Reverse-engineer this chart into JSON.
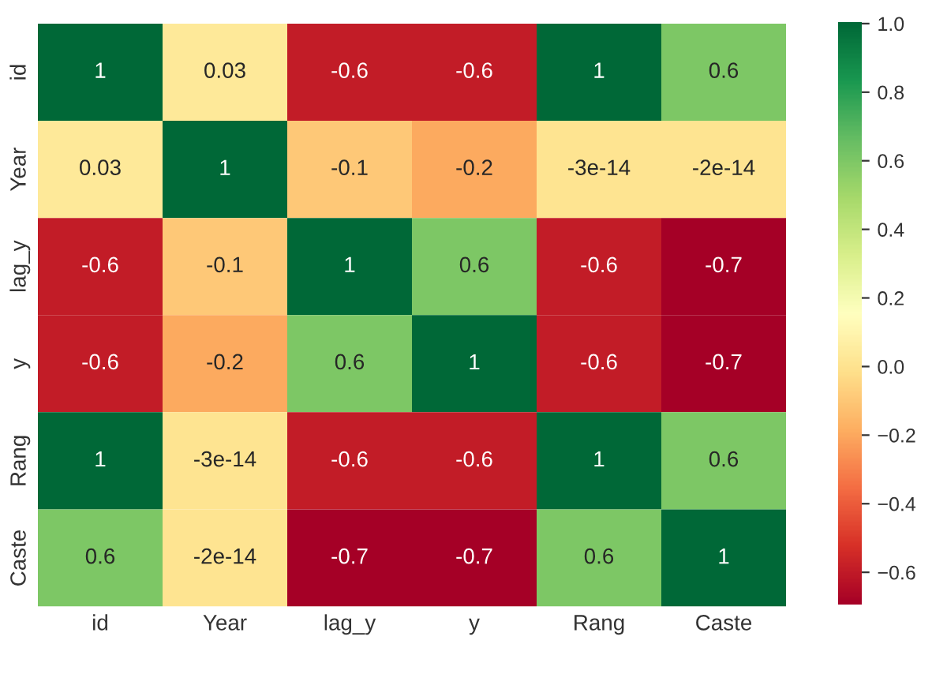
{
  "chart_data": {
    "type": "heatmap",
    "categories": [
      "id",
      "Year",
      "lag_y",
      "y",
      "Rang",
      "Caste"
    ],
    "y_categories": [
      "id",
      "Year",
      "lag_y",
      "y",
      "Rang",
      "Caste"
    ],
    "cells": [
      [
        1,
        0.03,
        -0.6,
        -0.6,
        1,
        0.6
      ],
      [
        0.03,
        1,
        -0.1,
        -0.2,
        -3e-14,
        -2e-14
      ],
      [
        -0.6,
        -0.1,
        1,
        0.6,
        -0.6,
        -0.7
      ],
      [
        -0.6,
        -0.2,
        0.6,
        1,
        -0.6,
        -0.7
      ],
      [
        1,
        -3e-14,
        -0.6,
        -0.6,
        1,
        0.6
      ],
      [
        0.6,
        -2e-14,
        -0.7,
        -0.7,
        0.6,
        1
      ]
    ],
    "data_labels": true,
    "clim": [
      -0.7,
      1.0
    ],
    "cticks": [
      {
        "value": -0.6,
        "label": "−0.6"
      },
      {
        "value": -0.4,
        "label": "−0.4"
      },
      {
        "value": -0.2,
        "label": "−0.2"
      },
      {
        "value": 0.0,
        "label": "0.0"
      },
      {
        "value": 0.2,
        "label": "0.2"
      },
      {
        "value": 0.4,
        "label": "0.4"
      },
      {
        "value": 0.6,
        "label": "0.6"
      },
      {
        "value": 0.8,
        "label": "0.8"
      },
      {
        "value": 1.0,
        "label": "1.0"
      }
    ]
  }
}
